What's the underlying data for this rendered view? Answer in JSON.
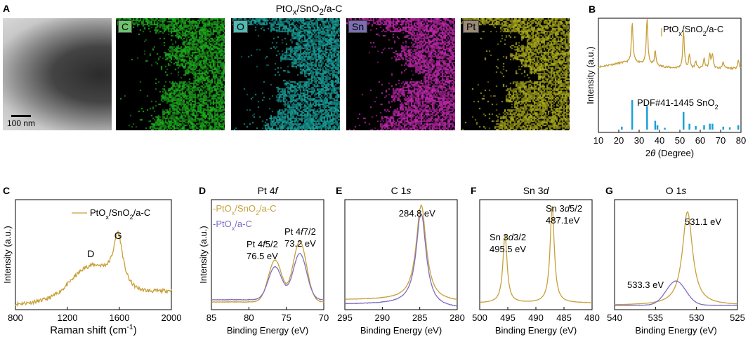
{
  "panel_a": {
    "letter": "A",
    "title": "PtOx/SnO2/a-C",
    "scale_bar": "100 nm",
    "maps": [
      {
        "label": "C",
        "color": "#1fb41f",
        "label_bg": "#6dc36d"
      },
      {
        "label": "O",
        "color": "#1aa8a3",
        "label_bg": "#54b9b4"
      },
      {
        "label": "Sn",
        "color": "#c829b4",
        "label_bg": "#7a6fb0"
      },
      {
        "label": "Pt",
        "color": "#b3b31f",
        "label_bg": "#9a8a78"
      }
    ]
  },
  "colors": {
    "gold": "#c8a03a",
    "purple": "#7b6fc4",
    "blue": "#1b9fd8"
  },
  "chart_data": [
    {
      "id": "B",
      "type": "line",
      "letter": "B",
      "title": "",
      "xlabel": "2θ (Degree)",
      "ylabel": "Intensity (a.u.)",
      "xlim": [
        10,
        80
      ],
      "xticks": [
        "10",
        "20",
        "30",
        "40",
        "50",
        "60",
        "70",
        "80"
      ],
      "legend": "PtOx/SnO2/a-C",
      "reference_label": "PDF#41-1445 SnO2",
      "series": [
        {
          "name": "PtOx/SnO2/a-C",
          "peaks": [
            [
              26.6,
              0.85
            ],
            [
              33.9,
              0.95
            ],
            [
              37.9,
              0.3
            ],
            [
              51.8,
              0.8
            ],
            [
              54.7,
              0.28
            ],
            [
              57.8,
              0.15
            ],
            [
              61.9,
              0.2
            ],
            [
              64.7,
              0.3
            ],
            [
              66.0,
              0.3
            ],
            [
              71.3,
              0.15
            ],
            [
              78.7,
              0.18
            ]
          ]
        }
      ],
      "reference_sticks": [
        [
          21.5,
          0.1
        ],
        [
          26.6,
          1.0
        ],
        [
          33.9,
          0.8
        ],
        [
          37.9,
          0.3
        ],
        [
          39.0,
          0.15
        ],
        [
          42.6,
          0.06
        ],
        [
          51.8,
          0.6
        ],
        [
          54.7,
          0.2
        ],
        [
          57.8,
          0.12
        ],
        [
          61.9,
          0.15
        ],
        [
          64.7,
          0.2
        ],
        [
          66.0,
          0.2
        ],
        [
          71.3,
          0.1
        ],
        [
          74.5,
          0.08
        ],
        [
          78.7,
          0.15
        ]
      ]
    },
    {
      "id": "C",
      "type": "line",
      "letter": "C",
      "title": "",
      "xlabel": "Raman shift (cm-1)",
      "ylabel": "Intensity (a.u.)",
      "xlim": [
        800,
        2000
      ],
      "xticks": [
        "800",
        "1200",
        "1600",
        "2000"
      ],
      "legend": "PtOx/SnO2/a-C",
      "annotations": [
        {
          "text": "D",
          "x": 1380
        },
        {
          "text": "G",
          "x": 1590
        }
      ],
      "series": [
        {
          "name": "PtOx/SnO2/a-C",
          "peaks": [
            [
              1380,
              0.5,
              150
            ],
            [
              1590,
              0.78,
              45
            ]
          ]
        }
      ]
    },
    {
      "id": "D",
      "type": "line",
      "letter": "D",
      "title": "Pt 4f",
      "xlabel": "Binding Energy (eV)",
      "ylabel": "Intensity (a.u.)",
      "xlim": [
        85,
        70
      ],
      "xticks": [
        "85",
        "80",
        "75",
        "70"
      ],
      "legend": [
        "-PtOx/SnO2/a-C",
        "-PtOx/a-C"
      ],
      "annotations": [
        {
          "text": "Pt 4f5/2",
          "value": "76.5 eV"
        },
        {
          "text": "Pt 4f7/2",
          "value": "73.2 eV"
        }
      ],
      "series": [
        {
          "name": "PtOx/SnO2/a-C",
          "peaks": [
            [
              76.5,
              0.38,
              0.9
            ],
            [
              73.2,
              0.55,
              0.9
            ]
          ]
        },
        {
          "name": "PtOx/a-C",
          "peaks": [
            [
              76.5,
              0.3,
              0.9
            ],
            [
              73.2,
              0.42,
              0.9
            ]
          ]
        }
      ]
    },
    {
      "id": "E",
      "type": "line",
      "letter": "E",
      "title": "C 1s",
      "xlabel": "Binding Energy (eV)",
      "ylabel": "",
      "xlim": [
        295,
        280
      ],
      "xticks": [
        "295",
        "290",
        "285",
        "280"
      ],
      "annotations": [
        {
          "text": "284.8 eV",
          "x": 284.8
        }
      ],
      "series": [
        {
          "name": "PtOx/SnO2/a-C",
          "peaks": [
            [
              284.8,
              0.88,
              0.8
            ]
          ]
        },
        {
          "name": "PtOx/a-C",
          "peaks": [
            [
              284.8,
              0.86,
              0.8
            ]
          ]
        }
      ]
    },
    {
      "id": "F",
      "type": "line",
      "letter": "F",
      "title": "Sn 3d",
      "xlabel": "Binding Energy (eV)",
      "ylabel": "",
      "xlim": [
        500,
        480
      ],
      "xticks": [
        "500",
        "495",
        "490",
        "485",
        "480"
      ],
      "annotations": [
        {
          "text": "Sn 3d3/2",
          "value": "495.5 eV"
        },
        {
          "text": "Sn 3d5/2",
          "value": "487.1eV"
        }
      ],
      "series": [
        {
          "name": "PtOx/SnO2/a-C",
          "peaks": [
            [
              495.5,
              0.62,
              0.45
            ],
            [
              487.1,
              0.88,
              0.45
            ]
          ]
        }
      ]
    },
    {
      "id": "G",
      "type": "line",
      "letter": "G",
      "title": "O 1s",
      "xlabel": "Binding Energy (eV)",
      "ylabel": "",
      "xlim": [
        540,
        525
      ],
      "xticks": [
        "540",
        "535",
        "530",
        "525"
      ],
      "annotations": [
        {
          "text": "531.1 eV",
          "x": 531.1
        },
        {
          "text": "533.3 eV",
          "x": 533.3
        }
      ],
      "series": [
        {
          "name": "PtOx/SnO2/a-C",
          "peaks": [
            [
              531.1,
              0.85,
              0.75
            ]
          ]
        },
        {
          "name": "PtOx/a-C",
          "peaks": [
            [
              532.5,
              0.22,
              1.2
            ]
          ]
        }
      ]
    }
  ]
}
